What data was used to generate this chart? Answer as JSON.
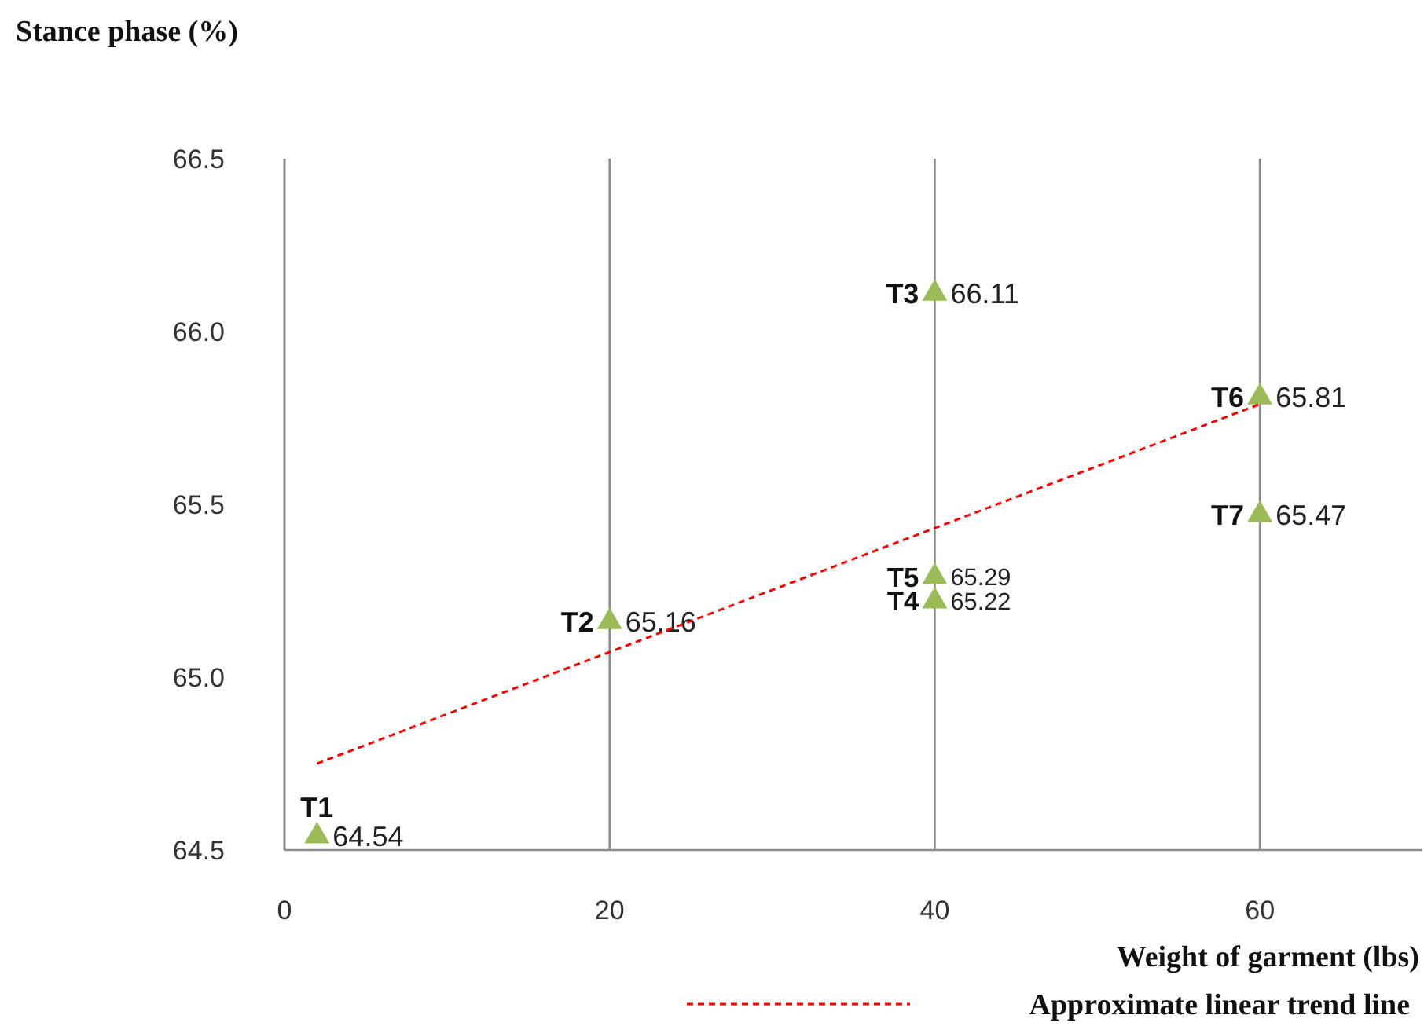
{
  "chart_data": {
    "type": "scatter",
    "ylabel": "Stance phase (%)",
    "xlabel": "Weight of garment (lbs)",
    "xlim": [
      0,
      70
    ],
    "xticks": [
      0,
      20,
      40,
      60
    ],
    "ylim": [
      64.5,
      66.5
    ],
    "yticks": [
      {
        "value": 64.5,
        "label": "64.5"
      },
      {
        "value": 65,
        "label": "65.0"
      },
      {
        "value": 65.5,
        "label": "65.5"
      },
      {
        "value": 66,
        "label": "66.0"
      },
      {
        "value": 66.5,
        "label": "66.5"
      }
    ],
    "grid": "x",
    "legend": "bottom right",
    "series": [
      {
        "color": "#9bbb59",
        "marker": "triangle",
        "x": [
          2,
          20,
          40,
          40,
          40,
          60,
          60
        ],
        "values": [
          64.54,
          65.16,
          66.11,
          65.22,
          65.29,
          65.81,
          65.47
        ],
        "value_labels": [
          "64.54",
          "65.16",
          "66.11",
          "65.22",
          "65.29",
          "65.81",
          "65.47"
        ]
      },
      {
        "type": "line",
        "name": "Approximate linear trend line",
        "color": "#ff0000",
        "line_style": "dashed",
        "marker": "none",
        "x": [
          2,
          60
        ],
        "values": [
          64.75,
          65.79
        ]
      }
    ],
    "annotations": [
      {
        "text": "T1",
        "x": 2,
        "y": 64.54
      },
      {
        "text": "T2",
        "x": 20,
        "y": 65.16
      },
      {
        "text": "T3",
        "x": 40,
        "y": 66.11
      },
      {
        "text": "T4",
        "x": 40,
        "y": 65.22
      },
      {
        "text": "T5",
        "x": 40,
        "y": 65.29
      },
      {
        "text": "T6",
        "x": 60,
        "y": 65.81
      },
      {
        "text": "T7",
        "x": 60,
        "y": 65.47
      }
    ]
  }
}
